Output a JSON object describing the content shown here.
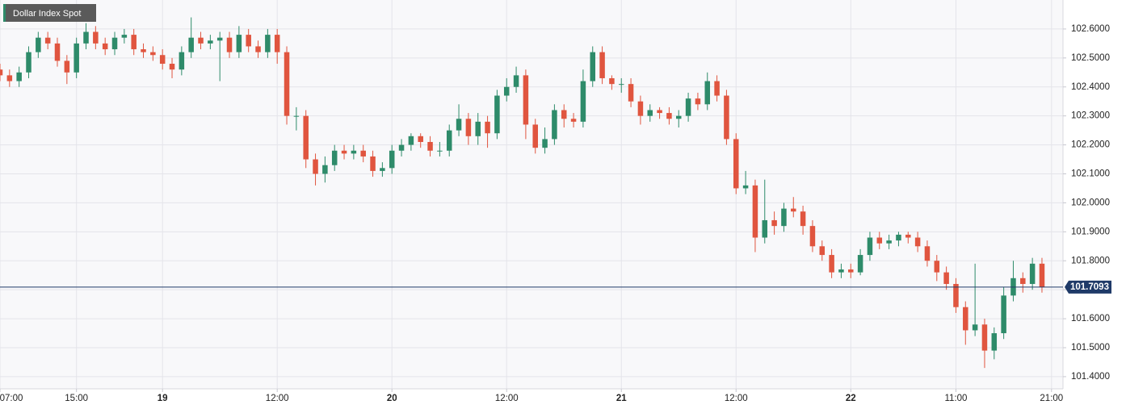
{
  "chart_data": {
    "type": "candlestick",
    "title": "Dollar Index Spot",
    "x": [
      0,
      1,
      2,
      3,
      4,
      5,
      6,
      7,
      8,
      9,
      10,
      11,
      12,
      13,
      14,
      15,
      16,
      17,
      18,
      19,
      20,
      21,
      22,
      23,
      24,
      25,
      26,
      27,
      28,
      29,
      30,
      31,
      32,
      33,
      34,
      35,
      36,
      37,
      38,
      39,
      40,
      41,
      42,
      43,
      44,
      45,
      46,
      47,
      48,
      49,
      50,
      51,
      52,
      53,
      54,
      55,
      56,
      57,
      58,
      59,
      60,
      61,
      62,
      63,
      64,
      65,
      66,
      67,
      68,
      69,
      70,
      71,
      72,
      73,
      74,
      75,
      76,
      77,
      78,
      79,
      80,
      81,
      82,
      83,
      84,
      85,
      86,
      87,
      88,
      89,
      90,
      91,
      92,
      93,
      94,
      95,
      96,
      97,
      98,
      99,
      100,
      101,
      102,
      103,
      104,
      105,
      106,
      107,
      108,
      109
    ],
    "open": [
      102.46,
      102.44,
      102.42,
      102.45,
      102.52,
      102.57,
      102.55,
      102.49,
      102.45,
      102.55,
      102.59,
      102.55,
      102.53,
      102.57,
      102.58,
      102.53,
      102.52,
      102.51,
      102.48,
      102.46,
      102.52,
      102.57,
      102.55,
      102.56,
      102.57,
      102.52,
      102.58,
      102.54,
      102.52,
      102.58,
      102.52,
      102.3,
      102.3,
      102.15,
      102.1,
      102.13,
      102.18,
      102.17,
      102.18,
      102.16,
      102.11,
      102.12,
      102.18,
      102.2,
      102.23,
      102.21,
      102.18,
      102.18,
      102.25,
      102.29,
      102.23,
      102.28,
      102.24,
      102.37,
      102.4,
      102.44,
      102.27,
      102.19,
      102.22,
      102.32,
      102.29,
      102.28,
      102.42,
      102.52,
      102.43,
      102.41,
      102.41,
      102.35,
      102.3,
      102.32,
      102.31,
      102.29,
      102.3,
      102.36,
      102.34,
      102.42,
      102.37,
      102.22,
      102.05,
      102.06,
      101.88,
      101.94,
      101.92,
      101.98,
      101.97,
      101.92,
      101.85,
      101.82,
      101.76,
      101.77,
      101.76,
      101.82,
      101.88,
      101.86,
      101.87,
      101.89,
      101.88,
      101.85,
      101.8,
      101.76,
      101.72,
      101.64,
      101.56,
      101.58,
      101.49,
      101.55,
      101.68,
      101.74,
      101.72,
      101.79
    ],
    "high": [
      102.48,
      102.46,
      102.47,
      102.54,
      102.59,
      102.59,
      102.57,
      102.51,
      102.57,
      102.62,
      102.61,
      102.57,
      102.59,
      102.6,
      102.6,
      102.55,
      102.54,
      102.53,
      102.5,
      102.54,
      102.64,
      102.59,
      102.58,
      102.59,
      102.59,
      102.61,
      102.6,
      102.56,
      102.6,
      102.6,
      102.54,
      102.33,
      102.32,
      102.17,
      102.16,
      102.2,
      102.2,
      102.2,
      102.2,
      102.18,
      102.14,
      102.2,
      102.22,
      102.24,
      102.24,
      102.23,
      102.21,
      102.27,
      102.34,
      102.31,
      102.31,
      102.3,
      102.39,
      102.43,
      102.47,
      102.46,
      102.29,
      102.26,
      102.34,
      102.34,
      102.31,
      102.46,
      102.54,
      102.54,
      102.44,
      102.43,
      102.43,
      102.37,
      102.34,
      102.33,
      102.33,
      102.32,
      102.38,
      102.38,
      102.45,
      102.44,
      102.39,
      102.24,
      102.11,
      102.08,
      102.08,
      101.97,
      102.0,
      102.02,
      101.99,
      101.94,
      101.87,
      101.84,
      101.79,
      101.79,
      101.84,
      101.9,
      101.9,
      101.89,
      101.9,
      101.9,
      101.9,
      101.87,
      101.82,
      101.78,
      101.74,
      101.66,
      101.79,
      101.6,
      101.57,
      101.71,
      101.8,
      101.76,
      101.81,
      101.81
    ],
    "low": [
      102.42,
      102.4,
      102.4,
      102.43,
      102.5,
      102.53,
      102.47,
      102.41,
      102.43,
      102.53,
      102.53,
      102.51,
      102.51,
      102.55,
      102.51,
      102.5,
      102.49,
      102.46,
      102.43,
      102.44,
      102.5,
      102.53,
      102.53,
      102.42,
      102.5,
      102.5,
      102.52,
      102.5,
      102.5,
      102.48,
      102.27,
      102.25,
      102.12,
      102.06,
      102.07,
      102.11,
      102.15,
      102.15,
      102.14,
      102.09,
      102.09,
      102.1,
      102.16,
      102.18,
      102.19,
      102.16,
      102.16,
      102.16,
      102.23,
      102.2,
      102.2,
      102.19,
      102.22,
      102.35,
      102.38,
      102.22,
      102.17,
      102.17,
      102.2,
      102.26,
      102.26,
      102.26,
      102.4,
      102.41,
      102.39,
      102.38,
      102.33,
      102.27,
      102.28,
      102.29,
      102.27,
      102.26,
      102.28,
      102.32,
      102.32,
      102.35,
      102.2,
      102.03,
      102.03,
      101.83,
      101.86,
      101.89,
      101.9,
      101.95,
      101.89,
      101.83,
      101.8,
      101.74,
      101.74,
      101.74,
      101.75,
      101.8,
      101.84,
      101.84,
      101.85,
      101.86,
      101.83,
      101.78,
      101.73,
      101.7,
      101.62,
      101.51,
      101.54,
      101.43,
      101.46,
      101.53,
      101.66,
      101.69,
      101.7,
      101.69
    ],
    "close": [
      102.44,
      102.42,
      102.45,
      102.52,
      102.57,
      102.55,
      102.49,
      102.45,
      102.55,
      102.59,
      102.55,
      102.53,
      102.57,
      102.58,
      102.53,
      102.52,
      102.51,
      102.48,
      102.46,
      102.52,
      102.57,
      102.55,
      102.56,
      102.57,
      102.52,
      102.58,
      102.54,
      102.52,
      102.58,
      102.52,
      102.3,
      102.3,
      102.15,
      102.1,
      102.13,
      102.18,
      102.17,
      102.18,
      102.16,
      102.11,
      102.12,
      102.18,
      102.2,
      102.23,
      102.21,
      102.18,
      102.18,
      102.25,
      102.29,
      102.23,
      102.28,
      102.24,
      102.37,
      102.4,
      102.44,
      102.27,
      102.19,
      102.22,
      102.32,
      102.29,
      102.28,
      102.42,
      102.52,
      102.43,
      102.41,
      102.41,
      102.35,
      102.3,
      102.32,
      102.31,
      102.29,
      102.3,
      102.36,
      102.34,
      102.42,
      102.37,
      102.22,
      102.05,
      102.06,
      101.88,
      101.94,
      101.92,
      101.98,
      101.97,
      101.92,
      101.85,
      101.82,
      101.76,
      101.77,
      101.76,
      101.82,
      101.88,
      101.86,
      101.87,
      101.89,
      101.88,
      101.85,
      101.8,
      101.76,
      101.72,
      101.64,
      101.56,
      101.58,
      101.49,
      101.55,
      101.68,
      101.74,
      101.72,
      101.79,
      101.71
    ],
    "up_color": "#2e8b6a",
    "down_color": "#e0553f",
    "last_price": 101.7093,
    "xlim": [
      0,
      111.2
    ],
    "ylim": [
      101.358,
      102.7
    ],
    "xticks": [
      {
        "value": 0,
        "label": "07:00"
      },
      {
        "value": 8,
        "label": "15:00"
      },
      {
        "value": 17,
        "label": "19"
      },
      {
        "value": 29,
        "label": "12:00"
      },
      {
        "value": 41,
        "label": "20"
      },
      {
        "value": 53,
        "label": "12:00"
      },
      {
        "value": 65,
        "label": "21"
      },
      {
        "value": 77,
        "label": "12:00"
      },
      {
        "value": 89,
        "label": "22"
      },
      {
        "value": 100,
        "label": "11:00"
      },
      {
        "value": 110,
        "label": "21:00"
      }
    ],
    "yticks": [
      {
        "value": 101.4,
        "label": "101.4000"
      },
      {
        "value": 101.5,
        "label": "101.5000"
      },
      {
        "value": 101.6,
        "label": "101.6000"
      },
      {
        "value": 101.7,
        "label": "101.7000"
      },
      {
        "value": 101.8,
        "label": "101.8000"
      },
      {
        "value": 101.9,
        "label": "101.9000"
      },
      {
        "value": 102.0,
        "label": "102.0000"
      },
      {
        "value": 102.1,
        "label": "102.1000"
      },
      {
        "value": 102.2,
        "label": "102.2000"
      },
      {
        "value": 102.3,
        "label": "102.3000"
      },
      {
        "value": 102.4,
        "label": "102.4000"
      },
      {
        "value": 102.5,
        "label": "102.5000"
      },
      {
        "value": 102.6,
        "label": "102.6000"
      }
    ],
    "grid": true
  }
}
